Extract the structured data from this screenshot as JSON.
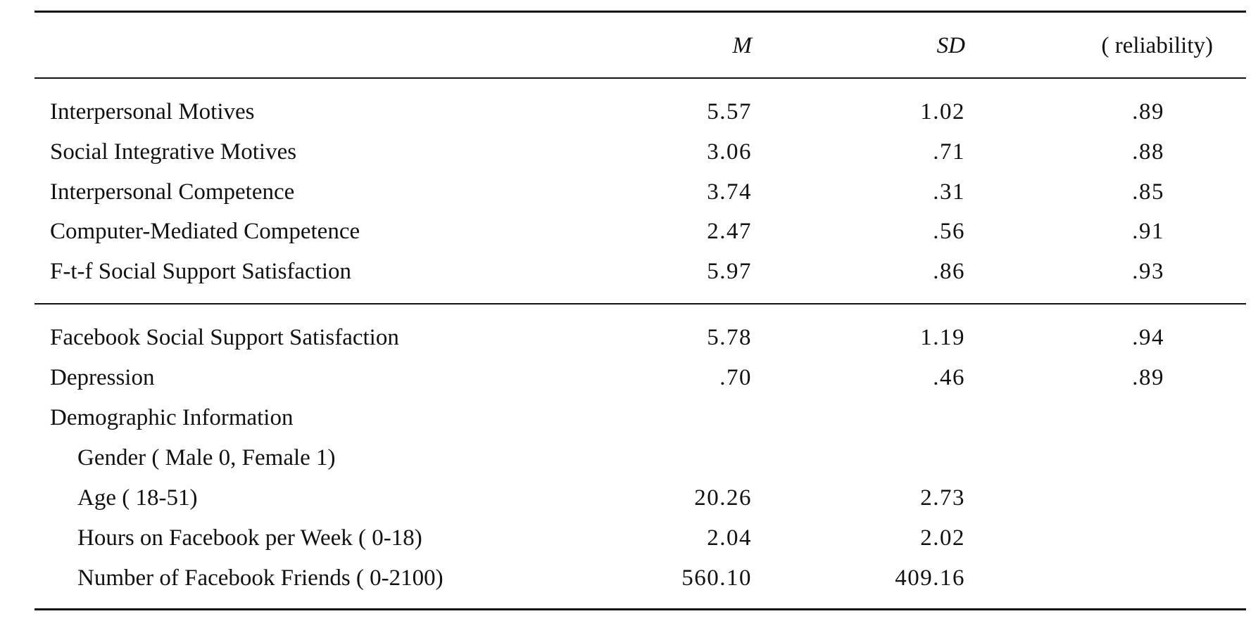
{
  "table": {
    "headers": {
      "label": "",
      "m": "M",
      "sd": "SD",
      "reliability": "( reliability)"
    },
    "group1": [
      {
        "label": "Interpersonal Motives",
        "m": "5.57",
        "sd": "1.02",
        "reliability": ".89"
      },
      {
        "label": "Social Integrative Motives",
        "m": "3.06",
        "sd": ".71",
        "reliability": ".88"
      },
      {
        "label": "Interpersonal Competence",
        "m": "3.74",
        "sd": ".31",
        "reliability": ".85"
      },
      {
        "label": "Computer-Mediated Competence",
        "m": "2.47",
        "sd": ".56",
        "reliability": ".91"
      },
      {
        "label": "F-t-f Social Support Satisfaction",
        "m": "5.97",
        "sd": ".86",
        "reliability": ".93"
      }
    ],
    "group2": [
      {
        "label": "Facebook Social Support Satisfaction",
        "m": "5.78",
        "sd": "1.19",
        "reliability": ".94"
      },
      {
        "label": "Depression",
        "m": ".70",
        "sd": ".46",
        "reliability": ".89"
      },
      {
        "label": "Demographic Information",
        "m": "",
        "sd": "",
        "reliability": ""
      },
      {
        "label": "Gender ( Male 0, Female 1)",
        "m": "",
        "sd": "",
        "reliability": "",
        "indent": true
      },
      {
        "label": "Age ( 18-51)",
        "m": "20.26",
        "sd": "2.73",
        "reliability": "",
        "indent": true
      },
      {
        "label": "Hours on Facebook per Week ( 0-18)",
        "m": "2.04",
        "sd": "2.02",
        "reliability": "",
        "indent": true
      },
      {
        "label": "Number of Facebook Friends ( 0-2100)",
        "m": "560.10",
        "sd": "409.16",
        "reliability": "",
        "indent": true
      }
    ]
  }
}
